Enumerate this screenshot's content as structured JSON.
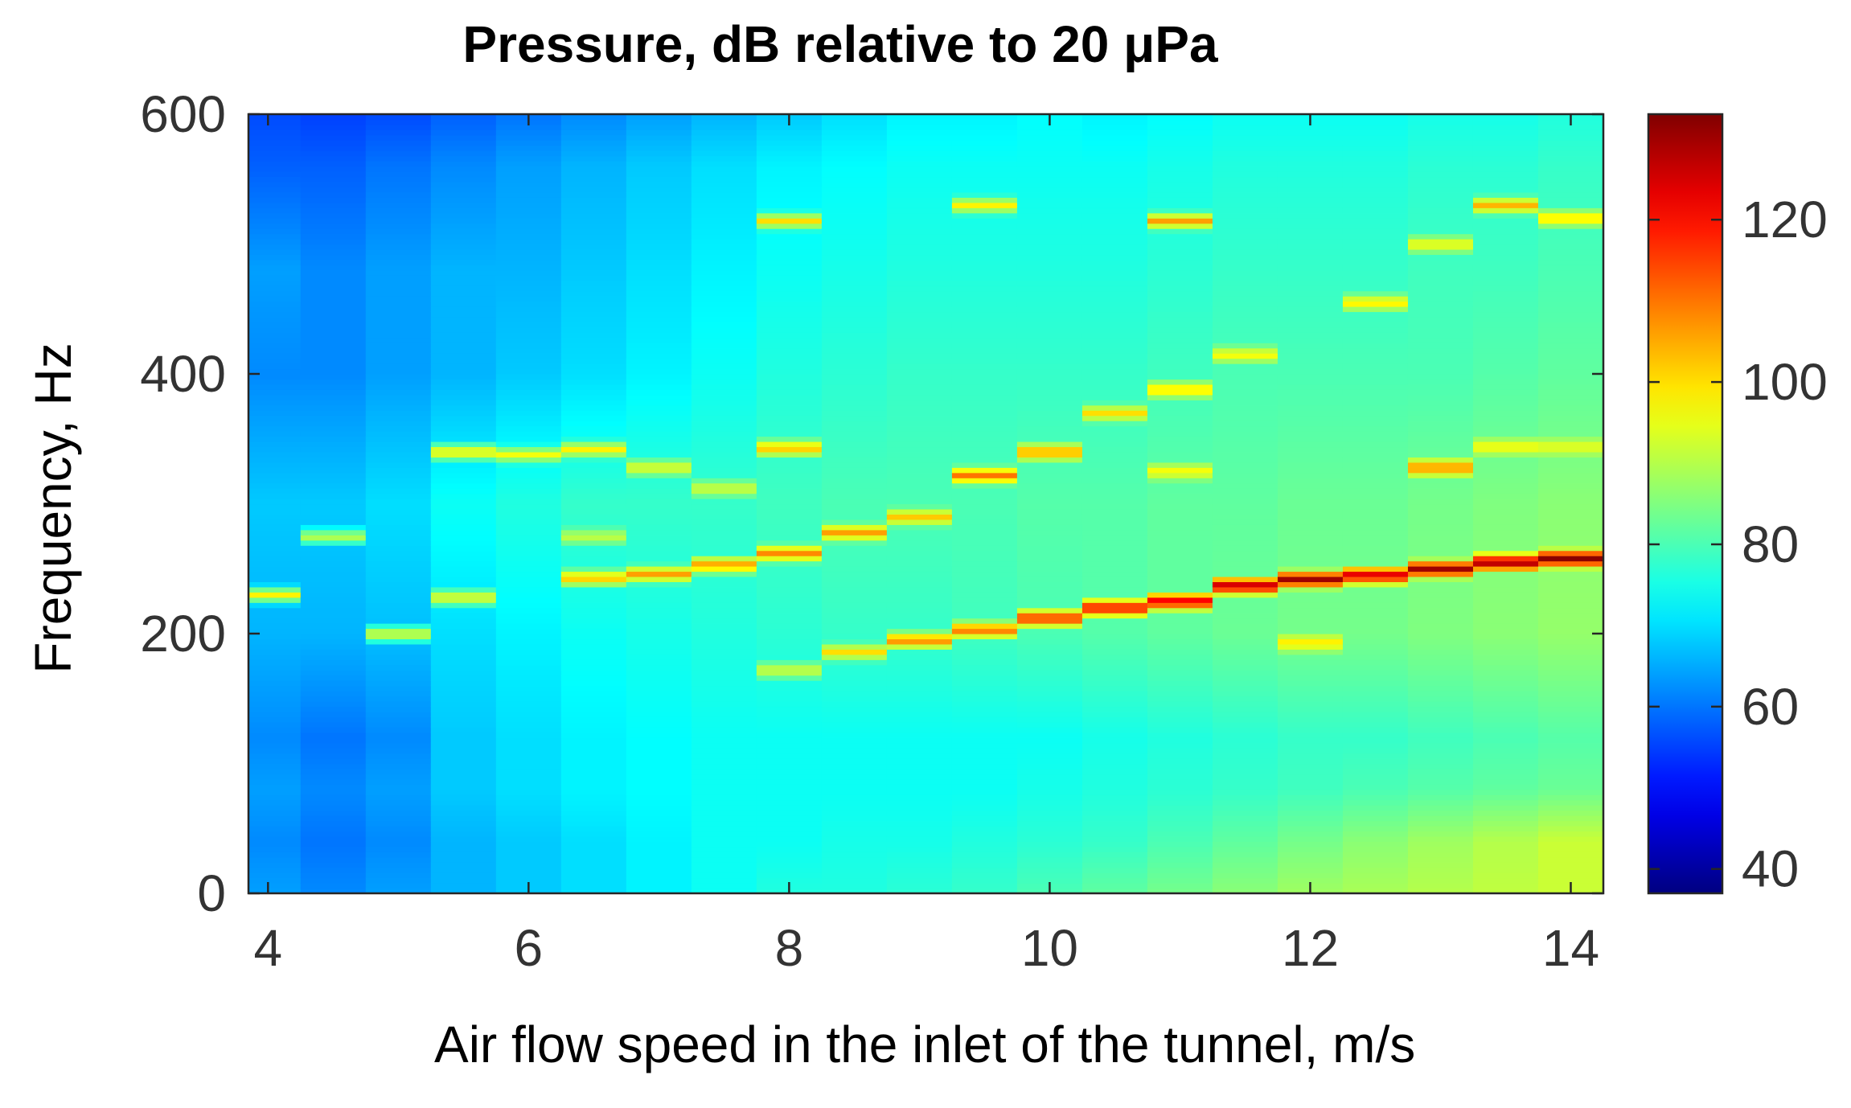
{
  "chart_data": {
    "type": "heatmap",
    "title": "Pressure, dB relative to 20 μPa",
    "xlabel": "Air flow speed in the inlet of the tunnel, m/s",
    "ylabel": "Frequency, Hz",
    "xlim": [
      3.85,
      14.25
    ],
    "ylim": [
      0,
      600
    ],
    "xticks": [
      4,
      6,
      8,
      10,
      12,
      14
    ],
    "yticks": [
      0,
      200,
      400,
      600
    ],
    "colorbar": {
      "range": [
        37,
        133
      ],
      "ticks": [
        40,
        60,
        80,
        100,
        120
      ],
      "colormap": "jet"
    },
    "x": [
      4.0,
      4.5,
      5.0,
      5.5,
      6.0,
      6.5,
      7.0,
      7.5,
      8.0,
      8.5,
      9.0,
      9.5,
      10.0,
      10.5,
      11.0,
      11.5,
      12.0,
      12.5,
      13.0,
      13.5,
      14.0
    ],
    "background": [
      [
        [
          0,
          64
        ],
        [
          40,
          62
        ],
        [
          80,
          64
        ],
        [
          120,
          62
        ],
        [
          200,
          66
        ],
        [
          300,
          68
        ],
        [
          400,
          62
        ],
        [
          480,
          64
        ],
        [
          560,
          58
        ],
        [
          600,
          56
        ]
      ],
      [
        [
          0,
          62
        ],
        [
          40,
          60
        ],
        [
          80,
          62
        ],
        [
          120,
          60
        ],
        [
          200,
          66
        ],
        [
          300,
          68
        ],
        [
          400,
          62
        ],
        [
          480,
          62
        ],
        [
          560,
          58
        ],
        [
          600,
          55
        ]
      ],
      [
        [
          0,
          64
        ],
        [
          40,
          62
        ],
        [
          80,
          64
        ],
        [
          120,
          62
        ],
        [
          200,
          67
        ],
        [
          300,
          70
        ],
        [
          400,
          64
        ],
        [
          480,
          64
        ],
        [
          560,
          60
        ],
        [
          600,
          56
        ]
      ],
      [
        [
          0,
          66
        ],
        [
          40,
          66
        ],
        [
          80,
          68
        ],
        [
          120,
          68
        ],
        [
          200,
          70
        ],
        [
          300,
          74
        ],
        [
          400,
          66
        ],
        [
          480,
          66
        ],
        [
          560,
          62
        ],
        [
          600,
          58
        ]
      ],
      [
        [
          0,
          68
        ],
        [
          40,
          68
        ],
        [
          80,
          70
        ],
        [
          120,
          70
        ],
        [
          200,
          72
        ],
        [
          300,
          76
        ],
        [
          400,
          68
        ],
        [
          480,
          66
        ],
        [
          560,
          64
        ],
        [
          600,
          60
        ]
      ],
      [
        [
          0,
          70
        ],
        [
          40,
          70
        ],
        [
          80,
          72
        ],
        [
          120,
          72
        ],
        [
          200,
          74
        ],
        [
          300,
          78
        ],
        [
          400,
          70
        ],
        [
          480,
          68
        ],
        [
          560,
          66
        ],
        [
          600,
          62
        ]
      ],
      [
        [
          0,
          72
        ],
        [
          40,
          72
        ],
        [
          80,
          73
        ],
        [
          120,
          73
        ],
        [
          200,
          75
        ],
        [
          300,
          78
        ],
        [
          400,
          72
        ],
        [
          480,
          70
        ],
        [
          560,
          68
        ],
        [
          600,
          64
        ]
      ],
      [
        [
          0,
          74
        ],
        [
          40,
          74
        ],
        [
          80,
          74
        ],
        [
          120,
          74
        ],
        [
          200,
          76
        ],
        [
          300,
          78
        ],
        [
          400,
          74
        ],
        [
          480,
          72
        ],
        [
          560,
          70
        ],
        [
          600,
          66
        ]
      ],
      [
        [
          0,
          76
        ],
        [
          40,
          74
        ],
        [
          80,
          74
        ],
        [
          120,
          74
        ],
        [
          200,
          77
        ],
        [
          300,
          79
        ],
        [
          400,
          76
        ],
        [
          480,
          74
        ],
        [
          560,
          72
        ],
        [
          600,
          68
        ]
      ],
      [
        [
          0,
          76
        ],
        [
          40,
          75
        ],
        [
          80,
          74
        ],
        [
          120,
          74
        ],
        [
          200,
          78
        ],
        [
          300,
          80
        ],
        [
          400,
          77
        ],
        [
          480,
          75
        ],
        [
          560,
          73
        ],
        [
          600,
          70
        ]
      ],
      [
        [
          0,
          77
        ],
        [
          40,
          75
        ],
        [
          80,
          74
        ],
        [
          120,
          74
        ],
        [
          200,
          78
        ],
        [
          300,
          80
        ],
        [
          400,
          78
        ],
        [
          480,
          76
        ],
        [
          560,
          74
        ],
        [
          600,
          72
        ]
      ],
      [
        [
          0,
          78
        ],
        [
          40,
          76
        ],
        [
          80,
          74
        ],
        [
          120,
          74
        ],
        [
          200,
          79
        ],
        [
          300,
          80
        ],
        [
          400,
          78
        ],
        [
          480,
          76
        ],
        [
          560,
          74
        ],
        [
          600,
          72
        ]
      ],
      [
        [
          0,
          80
        ],
        [
          40,
          77
        ],
        [
          80,
          75
        ],
        [
          120,
          74
        ],
        [
          200,
          80
        ],
        [
          300,
          81
        ],
        [
          400,
          78
        ],
        [
          480,
          76
        ],
        [
          560,
          74
        ],
        [
          600,
          73
        ]
      ],
      [
        [
          0,
          82
        ],
        [
          40,
          78
        ],
        [
          80,
          76
        ],
        [
          120,
          75
        ],
        [
          200,
          81
        ],
        [
          300,
          81
        ],
        [
          400,
          78
        ],
        [
          480,
          76
        ],
        [
          560,
          74
        ],
        [
          600,
          72
        ]
      ],
      [
        [
          0,
          84
        ],
        [
          40,
          80
        ],
        [
          80,
          77
        ],
        [
          120,
          76
        ],
        [
          200,
          82
        ],
        [
          300,
          82
        ],
        [
          400,
          79
        ],
        [
          480,
          77
        ],
        [
          560,
          75
        ],
        [
          600,
          73
        ]
      ],
      [
        [
          0,
          86
        ],
        [
          40,
          82
        ],
        [
          80,
          78
        ],
        [
          120,
          77
        ],
        [
          200,
          83
        ],
        [
          300,
          82
        ],
        [
          400,
          80
        ],
        [
          480,
          78
        ],
        [
          560,
          76
        ],
        [
          600,
          74
        ]
      ],
      [
        [
          0,
          88
        ],
        [
          40,
          84
        ],
        [
          80,
          79
        ],
        [
          120,
          78
        ],
        [
          200,
          84
        ],
        [
          300,
          83
        ],
        [
          400,
          80
        ],
        [
          480,
          78
        ],
        [
          560,
          76
        ],
        [
          600,
          74
        ]
      ],
      [
        [
          0,
          89
        ],
        [
          40,
          86
        ],
        [
          80,
          80
        ],
        [
          120,
          78
        ],
        [
          200,
          84
        ],
        [
          300,
          83
        ],
        [
          400,
          80
        ],
        [
          480,
          78
        ],
        [
          560,
          76
        ],
        [
          600,
          74
        ]
      ],
      [
        [
          0,
          90
        ],
        [
          40,
          88
        ],
        [
          80,
          81
        ],
        [
          120,
          79
        ],
        [
          200,
          85
        ],
        [
          300,
          84
        ],
        [
          400,
          80
        ],
        [
          480,
          79
        ],
        [
          560,
          77
        ],
        [
          600,
          75
        ]
      ],
      [
        [
          0,
          91
        ],
        [
          40,
          90
        ],
        [
          80,
          82
        ],
        [
          120,
          80
        ],
        [
          200,
          86
        ],
        [
          300,
          85
        ],
        [
          400,
          81
        ],
        [
          480,
          79
        ],
        [
          560,
          77
        ],
        [
          600,
          75
        ]
      ],
      [
        [
          0,
          92
        ],
        [
          40,
          92
        ],
        [
          80,
          83
        ],
        [
          120,
          81
        ],
        [
          200,
          87
        ],
        [
          300,
          86
        ],
        [
          400,
          82
        ],
        [
          480,
          80
        ],
        [
          560,
          78
        ],
        [
          600,
          76
        ]
      ]
    ],
    "peaks": [
      {
        "x": 4.0,
        "f": 230,
        "db": 98
      },
      {
        "x": 4.5,
        "f": 275,
        "db": 92
      },
      {
        "x": 5.0,
        "f": 200,
        "db": 96
      },
      {
        "x": 5.5,
        "f": 228,
        "db": 97
      },
      {
        "x": 5.5,
        "f": 340,
        "db": 100
      },
      {
        "x": 6.0,
        "f": 338,
        "db": 96
      },
      {
        "x": 6.5,
        "f": 243,
        "db": 104
      },
      {
        "x": 6.5,
        "f": 342,
        "db": 98
      },
      {
        "x": 6.5,
        "f": 275,
        "db": 92
      },
      {
        "x": 7.0,
        "f": 246,
        "db": 106
      },
      {
        "x": 7.0,
        "f": 328,
        "db": 96
      },
      {
        "x": 7.5,
        "f": 253,
        "db": 108
      },
      {
        "x": 7.5,
        "f": 312,
        "db": 94
      },
      {
        "x": 8.0,
        "f": 262,
        "db": 108
      },
      {
        "x": 8.0,
        "f": 343,
        "db": 104
      },
      {
        "x": 8.0,
        "f": 518,
        "db": 100
      },
      {
        "x": 8.0,
        "f": 172,
        "db": 94
      },
      {
        "x": 8.5,
        "f": 278,
        "db": 106
      },
      {
        "x": 8.5,
        "f": 186,
        "db": 100
      },
      {
        "x": 9.0,
        "f": 195,
        "db": 110
      },
      {
        "x": 9.0,
        "f": 290,
        "db": 102
      },
      {
        "x": 9.5,
        "f": 203,
        "db": 112
      },
      {
        "x": 9.5,
        "f": 322,
        "db": 110
      },
      {
        "x": 9.5,
        "f": 530,
        "db": 98
      },
      {
        "x": 10.0,
        "f": 212,
        "db": 120
      },
      {
        "x": 10.0,
        "f": 340,
        "db": 108
      },
      {
        "x": 10.5,
        "f": 220,
        "db": 124
      },
      {
        "x": 10.5,
        "f": 370,
        "db": 100
      },
      {
        "x": 11.0,
        "f": 225,
        "db": 126
      },
      {
        "x": 11.0,
        "f": 518,
        "db": 106
      },
      {
        "x": 11.0,
        "f": 388,
        "db": 102
      },
      {
        "x": 11.0,
        "f": 325,
        "db": 98
      },
      {
        "x": 11.5,
        "f": 237,
        "db": 130
      },
      {
        "x": 11.5,
        "f": 415,
        "db": 98
      },
      {
        "x": 12.0,
        "f": 242,
        "db": 130
      },
      {
        "x": 12.0,
        "f": 193,
        "db": 100
      },
      {
        "x": 12.5,
        "f": 245,
        "db": 128
      },
      {
        "x": 12.5,
        "f": 455,
        "db": 100
      },
      {
        "x": 13.0,
        "f": 250,
        "db": 130
      },
      {
        "x": 13.0,
        "f": 328,
        "db": 110
      },
      {
        "x": 13.0,
        "f": 500,
        "db": 98
      },
      {
        "x": 13.5,
        "f": 255,
        "db": 132
      },
      {
        "x": 13.5,
        "f": 530,
        "db": 104
      },
      {
        "x": 13.5,
        "f": 344,
        "db": 98
      },
      {
        "x": 14.0,
        "f": 258,
        "db": 132
      },
      {
        "x": 14.0,
        "f": 520,
        "db": 102
      },
      {
        "x": 14.0,
        "f": 344,
        "db": 96
      }
    ]
  }
}
